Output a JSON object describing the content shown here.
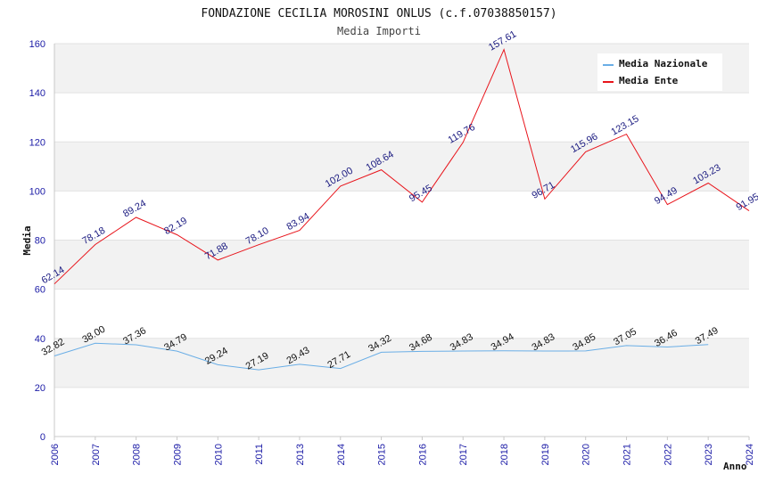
{
  "chart_data": {
    "type": "line",
    "title": "FONDAZIONE CECILIA MOROSINI ONLUS (c.f.07038850157)",
    "subtitle": "Media Importi",
    "xlabel": "Anno",
    "ylabel": "Media",
    "ylim": [
      0,
      160
    ],
    "yticks": [
      0,
      20,
      40,
      60,
      80,
      100,
      120,
      140,
      160
    ],
    "grid": "horizontal alternating bands",
    "legend_position": "top-right",
    "categories": [
      "2006",
      "2007",
      "2008",
      "2009",
      "2010",
      "2011",
      "2013",
      "2014",
      "2015",
      "2016",
      "2017",
      "2018",
      "2019",
      "2020",
      "2021",
      "2022",
      "2023",
      "2024"
    ],
    "series": [
      {
        "name": "Media Nazionale",
        "color": "#6aaee6",
        "values": [
          32.82,
          38.0,
          37.36,
          34.79,
          29.24,
          27.19,
          29.43,
          27.71,
          34.32,
          34.68,
          34.83,
          34.94,
          34.83,
          34.85,
          37.05,
          36.46,
          37.49,
          null
        ],
        "labels": [
          "32.82",
          "38.00",
          "37.36",
          "34.79",
          "29.24",
          "27.19",
          "29.43",
          "27.71",
          "34.32",
          "34.68",
          "34.83",
          "34.94",
          "34.83",
          "34.85",
          "37.05",
          "36.46",
          "37.49",
          null
        ]
      },
      {
        "name": "Media Ente",
        "color": "#e8141b",
        "values": [
          62.14,
          78.18,
          89.24,
          82.19,
          71.88,
          78.1,
          83.94,
          102.0,
          108.64,
          95.45,
          119.76,
          157.61,
          96.71,
          115.96,
          123.15,
          94.49,
          103.23,
          91.95
        ],
        "labels": [
          "62.14",
          "78.18",
          "89.24",
          "82.19",
          "71.88",
          "78.10",
          "83.94",
          "102.00",
          "108.64",
          "95.45",
          "119.76",
          "157.61",
          "96.71",
          "115.96",
          "123.15",
          "94.49",
          "103.23",
          "91.95"
        ]
      }
    ]
  }
}
